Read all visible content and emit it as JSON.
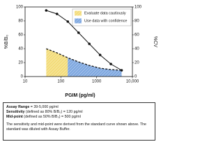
{
  "chart_data": {
    "type": "line",
    "xlabel": "PGIM (pg/ml)",
    "xlog": true,
    "x": [
      39,
      78,
      156,
      312.5,
      625,
      1250,
      2500,
      5000
    ],
    "series": [
      {
        "name": "%B/B₀",
        "color": "#111111",
        "axis": "y",
        "values": [
          95,
          90,
          79,
          63,
          47,
          31,
          18,
          9
        ]
      },
      {
        "name": "%CV",
        "color": "#111111",
        "axis": "y2",
        "values": [
          40,
          34,
          27,
          21,
          16,
          12,
          10,
          9
        ]
      }
    ],
    "xlim": [
      10,
      10000
    ],
    "xticks": [
      10,
      100,
      1000,
      {
        "value": 10000,
        "label": "10,000"
      }
    ],
    "ylim": [
      0,
      100
    ],
    "yticks": [
      0,
      20,
      40,
      60,
      80,
      100
    ],
    "y2lim": [
      0,
      100
    ],
    "y2ticks": [
      0,
      20,
      40,
      60,
      80,
      100
    ],
    "regions": [
      {
        "label": "Evaluate data cautiously",
        "color": "#f3dc7a",
        "xlim": [
          39,
          156
        ]
      },
      {
        "label": "Use data with confidence",
        "color": "#7fa8e0",
        "xlim": [
          156,
          5000
        ]
      }
    ]
  },
  "info": {
    "lines": [
      {
        "label": "Assay Range",
        "text": " = 39-5,000 pg/ml"
      },
      {
        "label": "Sensitivity",
        "text": " (defined as 80% B/B₀) = 120 pg/ml"
      },
      {
        "label": "Mid-point",
        "text": " (defined as 50% B/B₀) = 500 pg/ml"
      }
    ],
    "note": "The sensitivity and mid-point were derived from the standard curve shown above. The standard was diluted with Assay Buffer."
  }
}
